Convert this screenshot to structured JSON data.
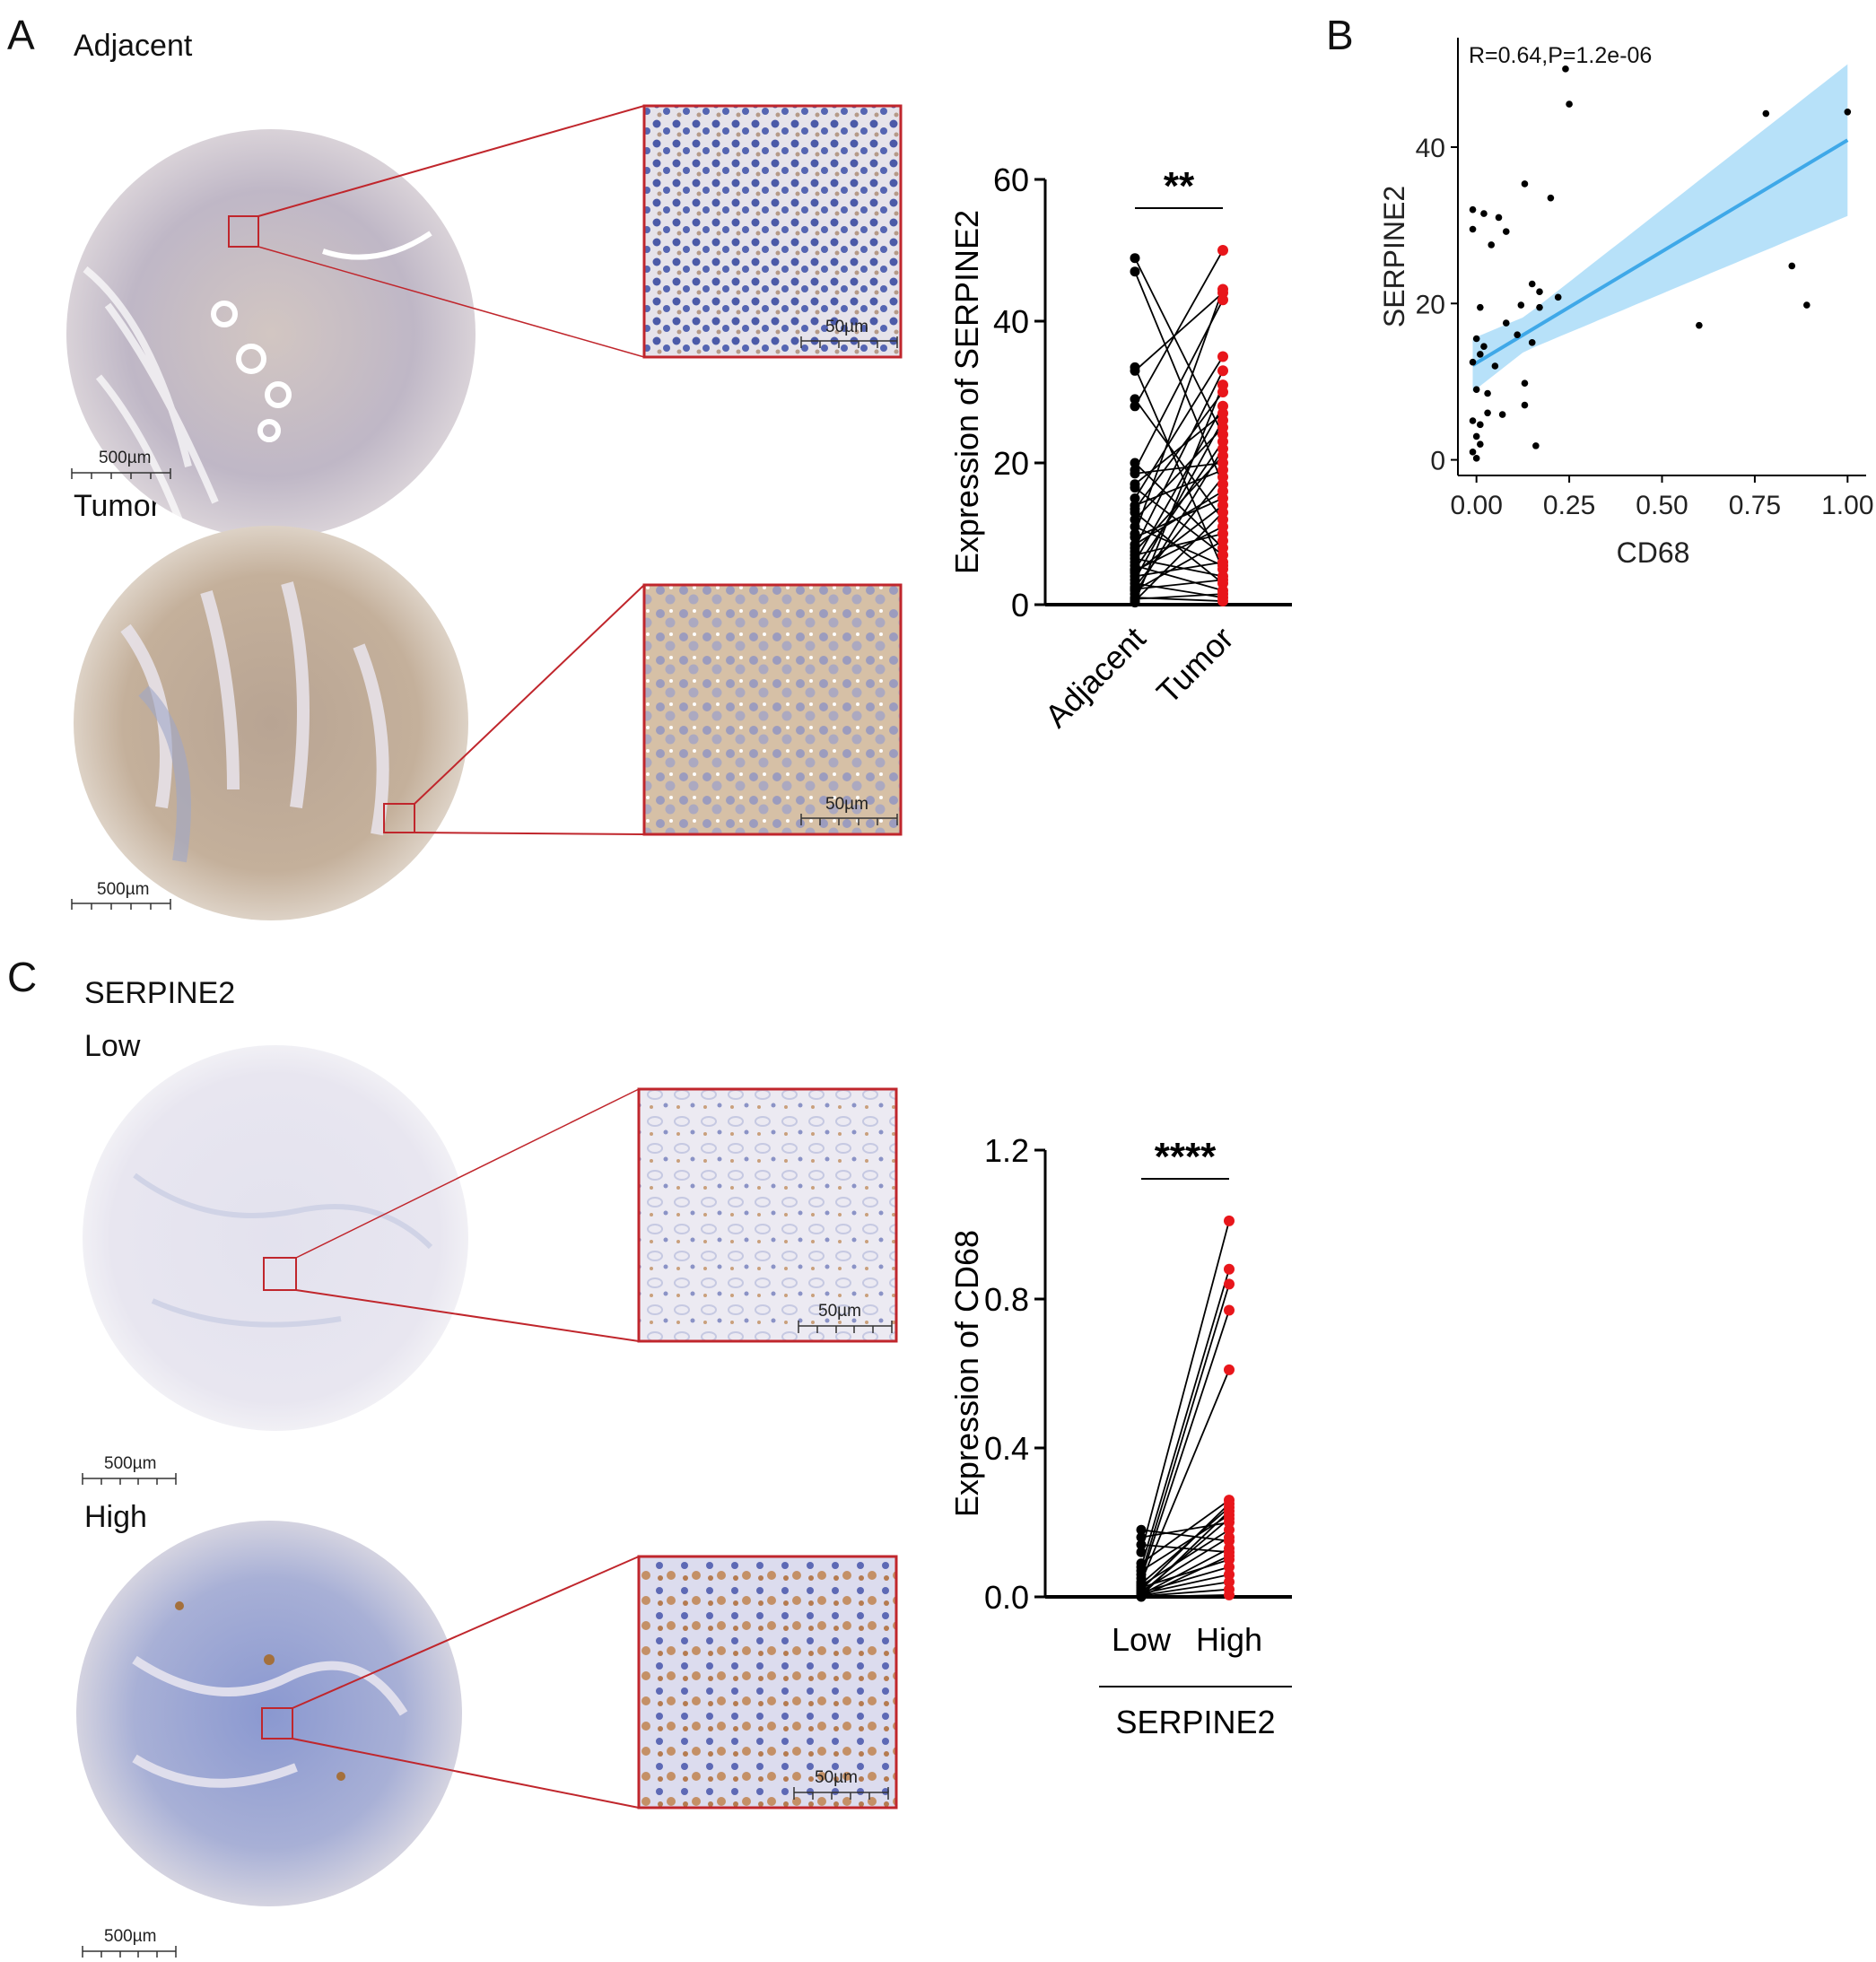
{
  "panels": {
    "A": {
      "letter": "A",
      "adjacent_label": "Adjacent",
      "tumor_label": "Tumor",
      "scale_large": "500µm",
      "scale_small": "50µm"
    },
    "B": {
      "letter": "B"
    },
    "C": {
      "letter": "C",
      "title": "SERPINE2",
      "low_label": "Low",
      "high_label": "High",
      "scale_large": "500µm",
      "scale_small": "50µm"
    }
  },
  "colors": {
    "black_points": "#000000",
    "red_points": "#e8161b",
    "fit_line": "#3fa8e8",
    "confidence_band": "#aadcf8",
    "zoom_box": "#c0262c",
    "stain_brown": "#b8906a",
    "stain_blue": "#7a86c8"
  },
  "chart_data": [
    {
      "id": "A-paired",
      "type": "scatter",
      "subtype": "paired-dot",
      "ylabel": "Expression of SERPINE2",
      "ylim": [
        0,
        60
      ],
      "yticks": [
        "0",
        "20",
        "40",
        "60"
      ],
      "categories": [
        "Adjacent",
        "Tumor"
      ],
      "significance": "**",
      "series": [
        {
          "values": [
            48.9,
            47.0,
            33.5,
            33.0,
            29.0,
            28.0,
            20.0,
            19.0,
            17.0,
            16.5,
            15.0,
            14.0,
            13.5,
            13.0,
            10.0,
            9.5,
            8.0,
            7.5,
            7.0,
            6.5,
            6.0,
            5.5,
            5.0,
            4.5,
            4.0,
            3.5,
            3.0,
            2.5,
            2.0,
            1.5,
            1.0,
            0.5,
            0.3,
            18.5,
            11.0,
            8.5,
            12.0,
            4.8,
            2.2,
            0.8
          ]
        },
        {
          "values": [
            24.0,
            17.0,
            5.0,
            44.0,
            12.0,
            50.0,
            8.0,
            43.0,
            27.0,
            7.0,
            35.0,
            19.0,
            30.0,
            3.0,
            44.5,
            15.0,
            33.0,
            21.0,
            10.0,
            4.0,
            28.0,
            2.0,
            23.0,
            14.0,
            6.0,
            26.0,
            1.0,
            18.0,
            9.0,
            22.0,
            0.5,
            13.0,
            31.0,
            20.0,
            5.5,
            16.0,
            25.0,
            11.0,
            3.5,
            1.5
          ]
        }
      ]
    },
    {
      "id": "B-correlation",
      "type": "scatter",
      "annotation": "R=0.64,P=1.2e-06",
      "xlabel": "CD68",
      "ylabel": "SERPINE2",
      "xlim": [
        -0.05,
        1.05
      ],
      "ylim": [
        -2,
        54
      ],
      "xticks": [
        "0.00",
        "0.25",
        "0.50",
        "0.75",
        "1.00"
      ],
      "yticks": [
        "0",
        "20",
        "40"
      ],
      "fit": {
        "intercept": 12.4,
        "slope": 28.5
      },
      "points": [
        [
          0.24,
          50.0
        ],
        [
          0.25,
          45.5
        ],
        [
          0.78,
          44.3
        ],
        [
          1.0,
          44.5
        ],
        [
          0.13,
          35.3
        ],
        [
          -0.01,
          32.0
        ],
        [
          0.02,
          31.5
        ],
        [
          0.06,
          31.0
        ],
        [
          -0.01,
          29.5
        ],
        [
          0.08,
          29.2
        ],
        [
          0.04,
          27.5
        ],
        [
          0.2,
          33.5
        ],
        [
          0.85,
          24.8
        ],
        [
          0.15,
          22.5
        ],
        [
          0.17,
          21.5
        ],
        [
          0.22,
          20.8
        ],
        [
          0.12,
          19.8
        ],
        [
          0.17,
          19.5
        ],
        [
          0.01,
          19.5
        ],
        [
          0.89,
          19.8
        ],
        [
          0.6,
          17.2
        ],
        [
          0.08,
          17.5
        ],
        [
          0.11,
          16.0
        ],
        [
          0.15,
          15.0
        ],
        [
          0.0,
          15.5
        ],
        [
          0.02,
          14.5
        ],
        [
          0.01,
          13.5
        ],
        [
          -0.01,
          12.5
        ],
        [
          0.05,
          12.0
        ],
        [
          0.13,
          9.8
        ],
        [
          0.0,
          9.0
        ],
        [
          0.03,
          8.5
        ],
        [
          0.13,
          7.0
        ],
        [
          0.03,
          6.0
        ],
        [
          0.07,
          5.8
        ],
        [
          -0.01,
          5.0
        ],
        [
          0.01,
          4.5
        ],
        [
          0.0,
          3.0
        ],
        [
          0.01,
          2.0
        ],
        [
          0.16,
          1.8
        ],
        [
          -0.01,
          1.0
        ],
        [
          0.0,
          0.2
        ]
      ]
    },
    {
      "id": "C-paired",
      "type": "scatter",
      "subtype": "paired-dot",
      "ylabel": "Expression of CD68",
      "ylim": [
        0,
        1.2
      ],
      "yticks": [
        "0.0",
        "0.4",
        "0.8",
        "1.2"
      ],
      "categories": [
        "Low",
        "High"
      ],
      "group_label": "SERPINE2",
      "significance": "****",
      "series": [
        {
          "values": [
            0.18,
            0.16,
            0.14,
            0.12,
            0.09,
            0.08,
            0.07,
            0.06,
            0.05,
            0.04,
            0.035,
            0.03,
            0.025,
            0.02,
            0.015,
            0.012,
            0.01,
            0.008,
            0.006,
            0.004,
            0.003,
            0.002,
            0.001,
            0.0
          ]
        },
        {
          "values": [
            0.15,
            0.2,
            0.12,
            1.01,
            0.26,
            0.88,
            0.22,
            0.84,
            0.77,
            0.61,
            0.24,
            0.18,
            0.1,
            0.25,
            0.16,
            0.08,
            0.21,
            0.06,
            0.13,
            0.04,
            0.23,
            0.02,
            0.11,
            0.005
          ]
        }
      ]
    }
  ]
}
